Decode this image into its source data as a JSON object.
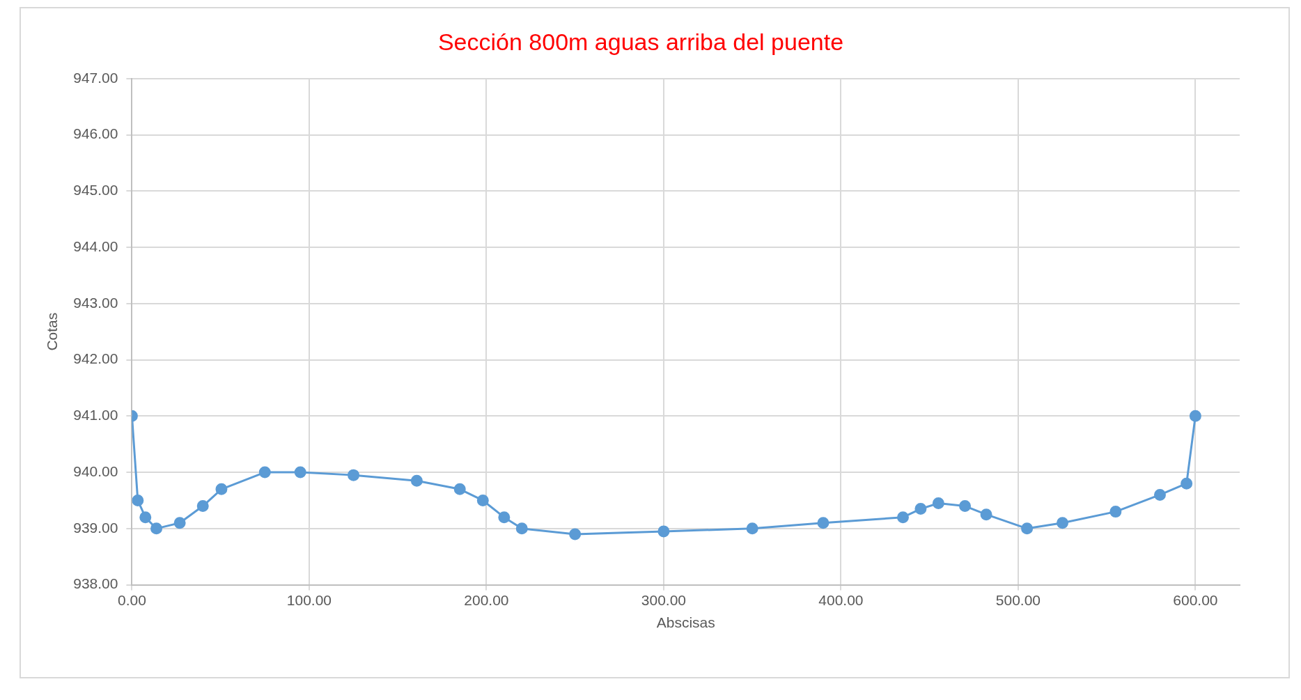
{
  "chart_data": {
    "type": "line",
    "title": "Sección 800m aguas arriba del puente",
    "xlabel": "Abscisas",
    "ylabel": "Cotas",
    "x": [
      0,
      3.3,
      7.6,
      13.8,
      27,
      40,
      50.5,
      75,
      95,
      125,
      160.7,
      185,
      198,
      210,
      220,
      250,
      300,
      350,
      390,
      435,
      445,
      455,
      470,
      482,
      505,
      525,
      555,
      580,
      595,
      600
    ],
    "series": [
      {
        "color": "#5b9bd5",
        "values": [
          941,
          939.5,
          939.2,
          939,
          939.1,
          939.4,
          939.7,
          940,
          940,
          939.95,
          939.85,
          939.7,
          939.5,
          939.2,
          939,
          938.9,
          938.95,
          939,
          939.1,
          939.2,
          939.35,
          939.45,
          939.4,
          939.25,
          939,
          939.1,
          939.3,
          939.6,
          939.8,
          941
        ]
      }
    ],
    "xlim": [
      0,
      625
    ],
    "xticks": [
      {
        "value": 0,
        "label": "0.00"
      },
      {
        "value": 100,
        "label": "100.00"
      },
      {
        "value": 200,
        "label": "200.00"
      },
      {
        "value": 300,
        "label": "300.00"
      },
      {
        "value": 400,
        "label": "400.00"
      },
      {
        "value": 500,
        "label": "500.00"
      },
      {
        "value": 600,
        "label": "600.00"
      }
    ],
    "ylim": [
      938,
      947
    ],
    "yticks": [
      {
        "value": 938,
        "label": "938.00"
      },
      {
        "value": 939,
        "label": "939.00"
      },
      {
        "value": 940,
        "label": "940.00"
      },
      {
        "value": 941,
        "label": "941.00"
      },
      {
        "value": 942,
        "label": "942.00"
      },
      {
        "value": 943,
        "label": "943.00"
      },
      {
        "value": 944,
        "label": "944.00"
      },
      {
        "value": 945,
        "label": "945.00"
      },
      {
        "value": 946,
        "label": "946.00"
      },
      {
        "value": 947,
        "label": "947.00"
      }
    ],
    "grid": true,
    "legend": false,
    "marker": "circle",
    "line_style": "solid"
  }
}
